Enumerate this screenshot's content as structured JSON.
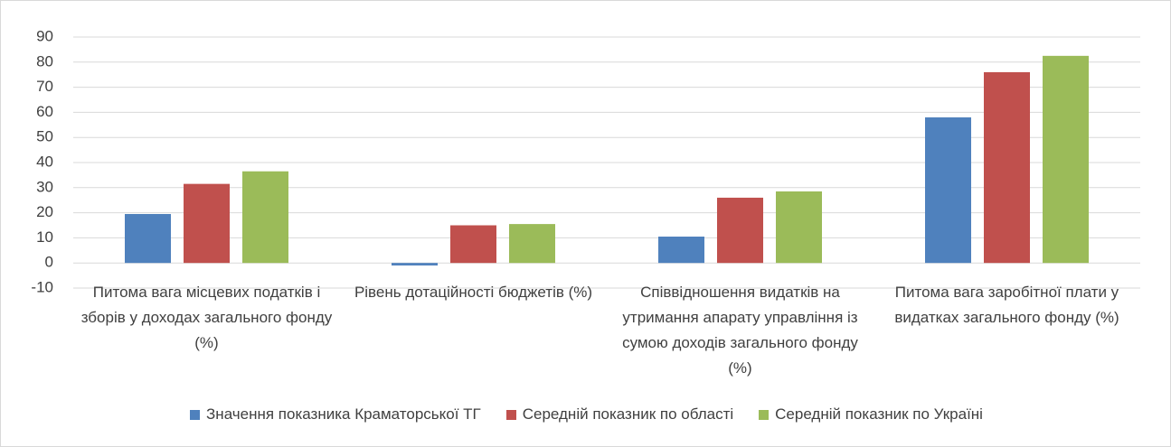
{
  "chart_data": {
    "type": "bar",
    "categories": [
      "Питома вага місцевих податків і зборів у доходах загального фонду (%)",
      "Рівень дотаційності бюджетів (%)",
      "Співвідношення видатків на утримання апарату управління із сумою доходів загального фонду (%)",
      "Питома вага заробітної плати у видатках загального фонду (%)"
    ],
    "series": [
      {
        "name": "Значення показника Краматорської ТГ",
        "color": "#4f81bd",
        "values": [
          19.5,
          -1,
          10.5,
          58
        ]
      },
      {
        "name": "Середній показник по області",
        "color": "#c0504d",
        "values": [
          31.5,
          15,
          26,
          76
        ]
      },
      {
        "name": "Середній показник по Україні",
        "color": "#9bbb59",
        "values": [
          36.5,
          15.5,
          28.5,
          82.5
        ]
      }
    ],
    "ylim": [
      -10,
      90
    ],
    "yticks": [
      -10,
      0,
      10,
      20,
      30,
      40,
      50,
      60,
      70,
      80,
      90
    ],
    "grid": true,
    "legend": "bottom"
  }
}
